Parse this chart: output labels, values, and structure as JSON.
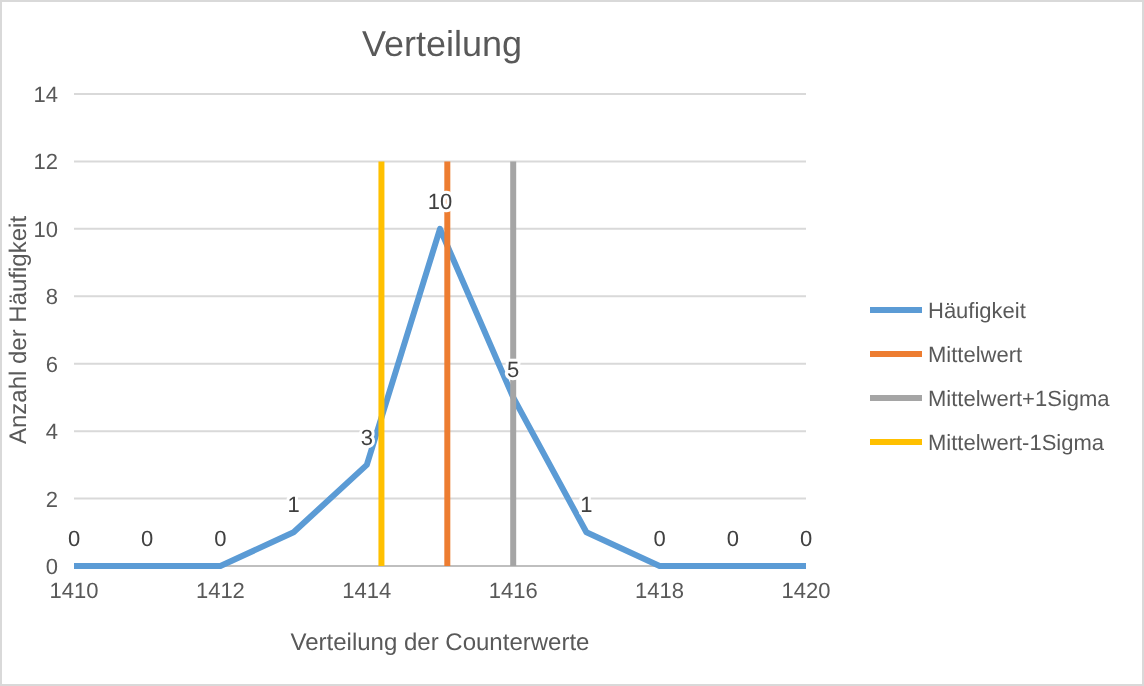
{
  "chart_data": {
    "type": "line",
    "title": "Verteilung",
    "xlabel": "Verteilung der Counterwerte",
    "ylabel": "Anzahl der Häufigkeit",
    "xlim": [
      1410,
      1420
    ],
    "xticks": [
      1410,
      1412,
      1414,
      1416,
      1418,
      1420
    ],
    "ylim": [
      0,
      14
    ],
    "yticks": [
      0,
      2,
      4,
      6,
      8,
      10,
      12,
      14
    ],
    "grid": "y",
    "legend": "right",
    "marker": "none",
    "line_style": "solid",
    "series": [
      {
        "name": "Häufigkeit",
        "color": "#5b9bd5",
        "x": [
          1410,
          1411,
          1412,
          1413,
          1414,
          1415,
          1416,
          1417,
          1418,
          1419,
          1420
        ],
        "values": [
          0,
          0,
          0,
          1,
          3,
          10,
          5,
          1,
          0,
          0,
          0
        ],
        "value_labels": [
          "0",
          "0",
          "0",
          "1",
          "3",
          "10",
          "5",
          "1",
          "0",
          "0",
          "0"
        ]
      },
      {
        "name": "Mittelwert",
        "color": "#ed7d31",
        "x": [
          1415.1,
          1415.1
        ],
        "values": [
          0,
          12
        ]
      },
      {
        "name": "Mittelwert+1Sigma",
        "color": "#a5a5a5",
        "x": [
          1416,
          1416
        ],
        "values": [
          0,
          12
        ]
      },
      {
        "name": "Mittelwert-1Sigma",
        "color": "#ffc000",
        "x": [
          1414.2,
          1414.2
        ],
        "values": [
          0,
          12
        ]
      }
    ]
  }
}
